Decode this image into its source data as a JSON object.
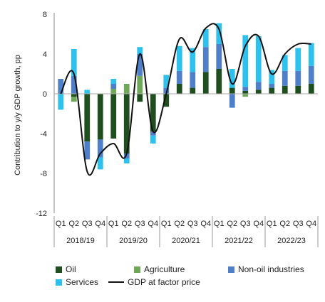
{
  "chart_data": {
    "type": "bar",
    "stacked": true,
    "ylabel": "Contribution to y/y GDP growth, pp",
    "ylim": [
      -12,
      8
    ],
    "yticks": [
      -12,
      -8,
      -4,
      0,
      4,
      8
    ],
    "quarter_labels": [
      "Q1",
      "Q2",
      "Q3",
      "Q4",
      "Q1",
      "Q2",
      "Q3",
      "Q4",
      "Q1",
      "Q2",
      "Q3",
      "Q4",
      "Q1",
      "Q2",
      "Q3",
      "Q4",
      "Q1",
      "Q2",
      "Q3",
      "Q4"
    ],
    "years": [
      "2018/19",
      "2019/20",
      "2020/21",
      "2021/22",
      "2022/23"
    ],
    "series": [
      {
        "name": "Oil",
        "color": "#1f4e1f",
        "values": [
          0.0,
          -0.3,
          -4.8,
          -4.6,
          -4.5,
          -6.0,
          -0.8,
          -3.8,
          -1.3,
          1.0,
          0.6,
          2.2,
          2.5,
          0.6,
          0.3,
          0.4,
          0.6,
          0.8,
          0.8,
          1.0
        ]
      },
      {
        "name": "Agriculture",
        "color": "#70a85a",
        "values": [
          0.0,
          -0.5,
          0.0,
          0.0,
          0.5,
          1.0,
          1.8,
          0.0,
          0.0,
          0.0,
          0.0,
          0.0,
          0.0,
          0.0,
          -0.3,
          0.0,
          0.0,
          0.0,
          0.0,
          0.0
        ]
      },
      {
        "name": "Non-oil industries",
        "color": "#4f7fc9",
        "values": [
          1.5,
          1.8,
          -1.8,
          -1.8,
          0.5,
          -0.5,
          2.2,
          -0.4,
          0.6,
          1.3,
          1.6,
          2.5,
          2.5,
          -1.4,
          0.4,
          0.8,
          0.4,
          1.5,
          1.5,
          1.8
        ]
      },
      {
        "name": "Services",
        "color": "#2fc1ee",
        "values": [
          -1.6,
          2.7,
          0.4,
          -1.2,
          0.5,
          -0.5,
          0.7,
          -0.8,
          1.3,
          2.5,
          2.4,
          1.8,
          2.1,
          1.9,
          5.2,
          4.6,
          1.4,
          1.6,
          2.3,
          2.3
        ]
      },
      {
        "name": "GDP at factor price",
        "color": "#111111",
        "type": "line",
        "values": [
          0.0,
          2.0,
          -7.8,
          -6.0,
          -5.0,
          -6.0,
          4.0,
          -3.8,
          0.0,
          5.5,
          4.2,
          6.6,
          6.5,
          1.0,
          4.8,
          5.8,
          2.0,
          4.0,
          5.0,
          5.0
        ]
      }
    ],
    "legend_position": "bottom",
    "grid": false
  }
}
